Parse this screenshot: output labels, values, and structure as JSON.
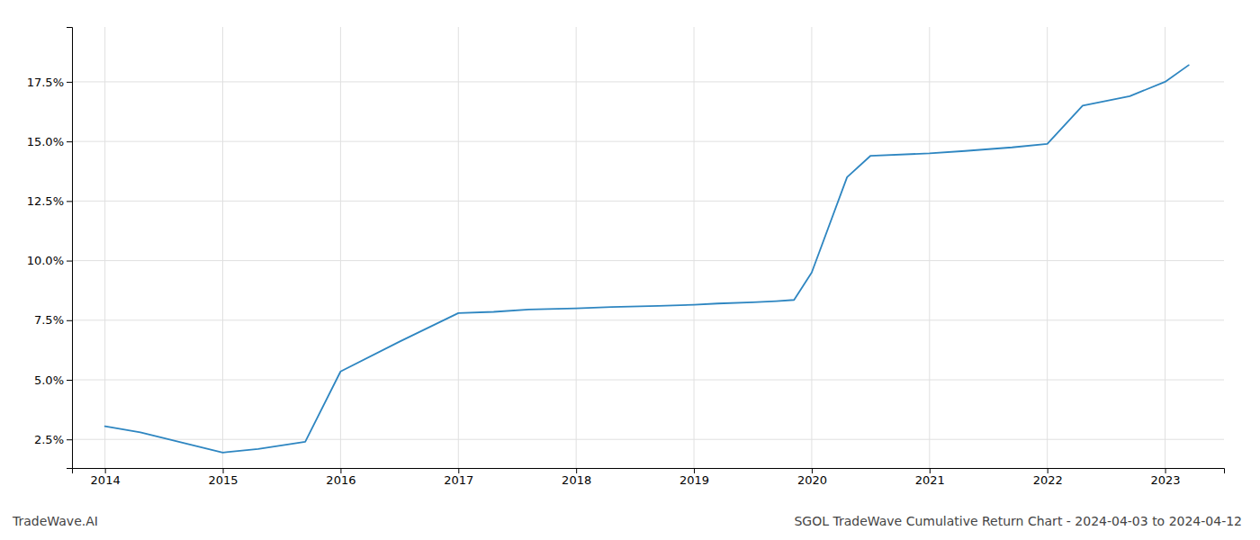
{
  "chart_data": {
    "type": "line",
    "title": "SGOL TradeWave Cumulative Return Chart - 2024-04-03 to 2024-04-12",
    "annotations": [
      "TradeWave.AI"
    ],
    "x": [
      2014.0,
      2014.3,
      2015.0,
      2015.3,
      2015.7,
      2016.0,
      2016.5,
      2017.0,
      2017.3,
      2017.6,
      2018.0,
      2018.3,
      2018.7,
      2019.0,
      2019.2,
      2019.5,
      2019.7,
      2019.85,
      2020.0,
      2020.3,
      2020.5,
      2021.0,
      2021.3,
      2021.7,
      2022.0,
      2022.3,
      2022.7,
      2023.0,
      2023.2
    ],
    "values": [
      3.05,
      2.8,
      1.95,
      2.1,
      2.4,
      5.35,
      6.6,
      7.8,
      7.85,
      7.95,
      8.0,
      8.05,
      8.1,
      8.15,
      8.2,
      8.25,
      8.3,
      8.35,
      9.5,
      13.5,
      14.4,
      14.5,
      14.6,
      14.75,
      14.9,
      16.5,
      16.9,
      17.5,
      18.2
    ],
    "color": "#2e86c1",
    "xlim": [
      2013.72,
      2023.5
    ],
    "xticks": [
      2014,
      2015,
      2016,
      2017,
      2018,
      2019,
      2020,
      2021,
      2022,
      2023
    ],
    "ylim": [
      1.3,
      19.8
    ],
    "yticks": [
      {
        "value": 2.5,
        "label": "2.5%"
      },
      {
        "value": 5.0,
        "label": "5.0%"
      },
      {
        "value": 7.5,
        "label": "7.5%"
      },
      {
        "value": 10.0,
        "label": "10.0%"
      },
      {
        "value": 12.5,
        "label": "12.5%"
      },
      {
        "value": 15.0,
        "label": "15.0%"
      },
      {
        "value": 17.5,
        "label": "17.5%"
      }
    ],
    "grid": true
  }
}
